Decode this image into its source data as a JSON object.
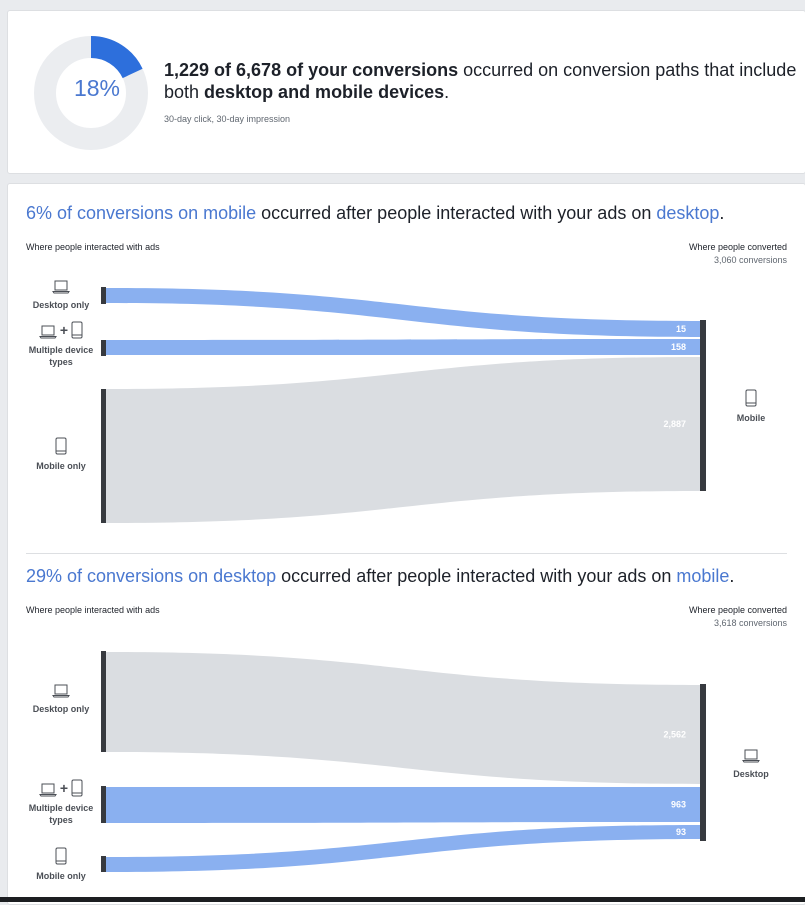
{
  "summary": {
    "percent_label": "18%",
    "percent_value": 18,
    "headline_bold": "1,229 of 6,678 of your conversions",
    "headline_mid": " occurred on conversion paths that include both ",
    "headline_bold2": "desktop and mobile devices",
    "headline_end": ".",
    "attribution": "30-day click, 30-day impression",
    "colors": {
      "accent": "#2d6fdc",
      "track": "#ebedf0"
    }
  },
  "chart_data": [
    {
      "type": "sankey",
      "title_highlight1": "6% of conversions on mobile",
      "title_mid": " occurred after people interacted with your ads on ",
      "title_highlight2": "desktop",
      "title_end": ".",
      "left_header": "Where people interacted with ads",
      "right_header": "Where people converted",
      "right_count": "3,060 conversions",
      "sources": [
        {
          "label": "Desktop only",
          "icon": "laptop-icon"
        },
        {
          "label": "Multiple device types",
          "icon": "laptop-plus-phone-icon"
        },
        {
          "label": "Mobile only",
          "icon": "phone-icon"
        }
      ],
      "target": {
        "label": "Mobile",
        "icon": "phone-icon"
      },
      "flows": [
        {
          "source": "Desktop only",
          "value": 15,
          "label": "15",
          "color": "#8ab0f0"
        },
        {
          "source": "Multiple device types",
          "value": 158,
          "label": "158",
          "color": "#8ab0f0"
        },
        {
          "source": "Mobile only",
          "value": 2887,
          "label": "2,887",
          "color": "#dadde1"
        }
      ]
    },
    {
      "type": "sankey",
      "title_highlight1": "29% of conversions on desktop",
      "title_mid": " occurred after people interacted with your ads on ",
      "title_highlight2": "mobile",
      "title_end": ".",
      "left_header": "Where people interacted with ads",
      "right_header": "Where people converted",
      "right_count": "3,618 conversions",
      "sources": [
        {
          "label": "Desktop only",
          "icon": "laptop-icon"
        },
        {
          "label": "Multiple device types",
          "icon": "laptop-plus-phone-icon"
        },
        {
          "label": "Mobile only",
          "icon": "phone-icon"
        }
      ],
      "target": {
        "label": "Desktop",
        "icon": "laptop-icon"
      },
      "flows": [
        {
          "source": "Desktop only",
          "value": 2562,
          "label": "2,562",
          "color": "#dadde1"
        },
        {
          "source": "Multiple device types",
          "value": 963,
          "label": "963",
          "color": "#8ab0f0"
        },
        {
          "source": "Mobile only",
          "value": 93,
          "label": "93",
          "color": "#8ab0f0"
        }
      ]
    }
  ]
}
